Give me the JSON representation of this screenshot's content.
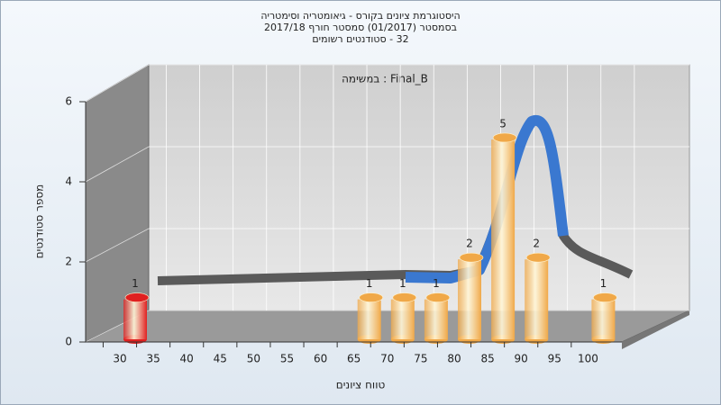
{
  "chart_data": {
    "type": "bar3d",
    "title": [
      "היסטוגרמת ציונים בקורס - גיאומטריה וסימטריה",
      "בסמסטר  (01/2017)  סמסטר חורף 2017/18",
      "32 - סטודנטים רשומים"
    ],
    "subtitle": "Final_B : במשימה",
    "x_label": "טווח ציונים",
    "y_label": "מספר סטודנטים",
    "categories": [
      "30",
      "35",
      "40",
      "45",
      "50",
      "55",
      "60",
      "65",
      "70",
      "75",
      "80",
      "85",
      "90",
      "95",
      "100"
    ],
    "values": [
      1,
      0,
      0,
      0,
      0,
      0,
      0,
      1,
      1,
      1,
      2,
      5,
      2,
      0,
      1
    ],
    "colors": [
      "#e02020",
      "#f0a848",
      "#f0a848",
      "#f0a848",
      "#f0a848",
      "#f0a848",
      "#f0a848",
      "#f0a848",
      "#f0a848",
      "#f0a848",
      "#f0a848",
      "#f0a848",
      "#f0a848",
      "#f0a848",
      "#f0a848"
    ],
    "ylim": [
      0,
      6
    ],
    "yticks": [
      0,
      2,
      4,
      6
    ],
    "grid": true
  }
}
